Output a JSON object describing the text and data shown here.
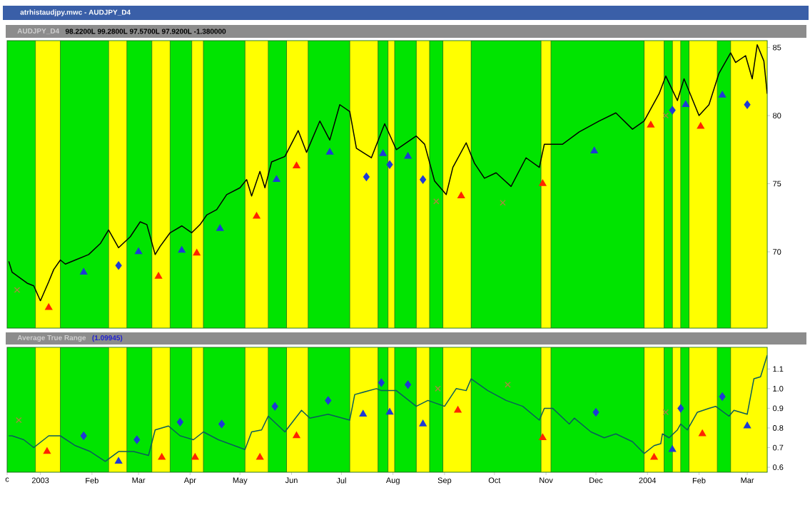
{
  "chart_data": [
    {
      "type": "line",
      "title": "atrhistaudjpy.mwc - AUDJPY_D4",
      "subtitle": "AUDJPY_D4",
      "annotations": [
        "98.2200L 99.2800L 97.5700L 97.9200L -1.380000"
      ],
      "xlim": [
        "2002-12-12",
        "2004-03-13"
      ],
      "ylim": [
        64.4,
        85.5
      ],
      "yticks": [
        70,
        75,
        80,
        85
      ],
      "tick_labels": "y",
      "bands": [
        {
          "axis": "x",
          "from": "2002-12-29",
          "to": "2003-01-13",
          "color": "#ffff00"
        },
        {
          "axis": "x",
          "from": "2003-02-11",
          "to": "2003-02-22",
          "color": "#ffff00"
        },
        {
          "axis": "x",
          "from": "2003-03-09",
          "to": "2003-03-20",
          "color": "#ffff00"
        },
        {
          "axis": "x",
          "from": "2003-04-02",
          "to": "2003-04-09",
          "color": "#ffff00"
        },
        {
          "axis": "x",
          "from": "2003-05-04",
          "to": "2003-05-18",
          "color": "#ffff00"
        },
        {
          "axis": "x",
          "from": "2003-05-29",
          "to": "2003-06-11",
          "color": "#ffff00"
        },
        {
          "axis": "x",
          "from": "2003-07-06",
          "to": "2003-07-23",
          "color": "#ffff00"
        },
        {
          "axis": "x",
          "from": "2003-07-29",
          "to": "2003-08-02",
          "color": "#ffff00"
        },
        {
          "axis": "x",
          "from": "2003-08-15",
          "to": "2003-08-23",
          "color": "#ffff00"
        },
        {
          "axis": "x",
          "from": "2003-08-31",
          "to": "2003-09-17",
          "color": "#ffff00"
        },
        {
          "axis": "x",
          "from": "2003-10-29",
          "to": "2003-11-04",
          "color": "#ffff00"
        },
        {
          "axis": "x",
          "from": "2003-12-30",
          "to": "2004-01-11",
          "color": "#ffff00"
        },
        {
          "axis": "x",
          "from": "2004-01-16",
          "to": "2004-01-21",
          "color": "#ffff00"
        },
        {
          "axis": "x",
          "from": "2004-01-26",
          "to": "2004-02-12",
          "color": "#ffff00"
        },
        {
          "axis": "x",
          "from": "2004-02-20",
          "to": "2004-03-13",
          "color": "#ffff00"
        }
      ],
      "series": [
        {
          "color": "#000000",
          "x": [
            "2002-12-13",
            "2002-12-15",
            "2002-12-24",
            "2002-12-28",
            "2003-01-01",
            "2003-01-06",
            "2003-01-09",
            "2003-01-13",
            "2003-01-16",
            "2003-01-22",
            "2003-01-30",
            "2003-02-06",
            "2003-02-11",
            "2003-02-17",
            "2003-02-24",
            "2003-03-02",
            "2003-03-06",
            "2003-03-11",
            "2003-03-14",
            "2003-03-20",
            "2003-03-27",
            "2003-04-02",
            "2003-04-07",
            "2003-04-11",
            "2003-04-17",
            "2003-04-23",
            "2003-05-01",
            "2003-05-05",
            "2003-05-08",
            "2003-05-13",
            "2003-05-16",
            "2003-05-20",
            "2003-05-28",
            "2003-06-05",
            "2003-06-10",
            "2003-06-18",
            "2003-06-24",
            "2003-06-30",
            "2003-07-06",
            "2003-07-10",
            "2003-07-19",
            "2003-07-27",
            "2003-08-03",
            "2003-08-15",
            "2003-08-20",
            "2003-08-26",
            "2003-09-02",
            "2003-09-06",
            "2003-09-14",
            "2003-09-19",
            "2003-09-25",
            "2003-10-02",
            "2003-10-11",
            "2003-10-20",
            "2003-10-28",
            "2003-10-31",
            "2003-11-11",
            "2003-11-21",
            "2003-12-03",
            "2003-12-13",
            "2003-12-23",
            "2003-12-30",
            "2004-01-08",
            "2004-01-12",
            "2004-01-19",
            "2004-01-23",
            "2004-02-01",
            "2004-02-07",
            "2004-02-13",
            "2004-02-20",
            "2004-02-23",
            "2004-02-29",
            "2004-03-04",
            "2004-03-07",
            "2004-03-11",
            "2004-03-13"
          ],
          "values": [
            69.3,
            68.5,
            67.7,
            67.5,
            66.4,
            67.8,
            68.7,
            69.4,
            69.1,
            69.4,
            69.8,
            70.6,
            71.6,
            70.3,
            71.1,
            72.2,
            72.0,
            69.8,
            70.4,
            71.4,
            71.9,
            71.4,
            72.0,
            72.7,
            73.1,
            74.2,
            74.7,
            75.3,
            74.1,
            75.9,
            74.7,
            76.6,
            77.0,
            78.9,
            77.3,
            79.6,
            78.2,
            80.8,
            80.3,
            77.6,
            76.9,
            79.4,
            77.5,
            78.5,
            77.9,
            75.2,
            74.2,
            76.2,
            78.0,
            76.5,
            75.4,
            75.8,
            74.8,
            76.9,
            76.2,
            77.9,
            77.9,
            78.8,
            79.6,
            80.2,
            79.0,
            79.6,
            81.6,
            82.9,
            81.1,
            82.7,
            80.0,
            80.8,
            83.1,
            84.6,
            83.9,
            84.4,
            82.7,
            85.2,
            84.0,
            81.6
          ]
        },
        {
          "type": "scatter",
          "marker": "triangle",
          "color": "#ff2400",
          "x": [
            "2003-01-06",
            "2003-03-13",
            "2003-04-05",
            "2003-05-11",
            "2003-06-04",
            "2003-09-11",
            "2003-10-30",
            "2004-01-03",
            "2004-02-02"
          ],
          "values": [
            65.9,
            68.2,
            69.9,
            72.6,
            76.3,
            74.1,
            75.0,
            79.3,
            79.2
          ]
        },
        {
          "type": "scatter",
          "marker": "triangle",
          "color": "#1e3ad6",
          "x": [
            "2003-01-27",
            "2003-03-01",
            "2003-03-27",
            "2003-04-19",
            "2003-05-23",
            "2003-06-24",
            "2003-07-26",
            "2003-08-10",
            "2003-11-30",
            "2004-01-24",
            "2004-02-15"
          ],
          "values": [
            68.5,
            70.0,
            70.1,
            71.7,
            75.3,
            77.3,
            77.2,
            77.0,
            77.4,
            80.8,
            81.5
          ]
        },
        {
          "type": "scatter",
          "marker": "diamond",
          "color": "#1e3ad6",
          "x": [
            "2003-02-17",
            "2003-07-16",
            "2003-07-30",
            "2003-08-19",
            "2004-01-16",
            "2004-03-01"
          ],
          "values": [
            69.0,
            75.5,
            76.4,
            75.3,
            80.4,
            80.8
          ]
        },
        {
          "type": "scatter",
          "marker": "cross",
          "color": "#a08c3c",
          "x": [
            "2002-12-18",
            "2003-08-27",
            "2003-10-06",
            "2004-01-12"
          ],
          "values": [
            67.2,
            73.7,
            73.6,
            80.0
          ]
        }
      ]
    },
    {
      "type": "line",
      "title": "Average True Range",
      "annotations": [
        "(1.09945)"
      ],
      "xlim": [
        "2002-12-12",
        "2004-03-13"
      ],
      "ylim": [
        0.575,
        1.21
      ],
      "yticks": [
        0.6,
        0.7,
        0.8,
        0.9,
        {
          "value": 1.0,
          "label": "1.0"
        },
        1.1
      ],
      "xticks": [
        {
          "value": "2002-12-12",
          "label": "c"
        },
        {
          "value": "2003-01-01",
          "label": "2003"
        },
        {
          "value": "2003-02-01",
          "label": "Feb"
        },
        {
          "value": "2003-03-01",
          "label": "Mar"
        },
        {
          "value": "2003-04-01",
          "label": "Apr"
        },
        {
          "value": "2003-05-01",
          "label": "May"
        },
        {
          "value": "2003-06-01",
          "label": "Jun"
        },
        {
          "value": "2003-07-01",
          "label": "Jul"
        },
        {
          "value": "2003-08-01",
          "label": "Aug"
        },
        {
          "value": "2003-09-01",
          "label": "Sep"
        },
        {
          "value": "2003-10-01",
          "label": "Oct"
        },
        {
          "value": "2003-11-01",
          "label": "Nov"
        },
        {
          "value": "2003-12-01",
          "label": "Dec"
        },
        {
          "value": "2004-01-01",
          "label": "2004"
        },
        {
          "value": "2004-02-01",
          "label": "Feb"
        },
        {
          "value": "2004-03-01",
          "label": "Mar"
        }
      ],
      "bands": [
        {
          "axis": "x",
          "from": "2002-12-29",
          "to": "2003-01-13",
          "color": "#ffff00"
        },
        {
          "axis": "x",
          "from": "2003-02-11",
          "to": "2003-02-22",
          "color": "#ffff00"
        },
        {
          "axis": "x",
          "from": "2003-03-09",
          "to": "2003-03-20",
          "color": "#ffff00"
        },
        {
          "axis": "x",
          "from": "2003-04-02",
          "to": "2003-04-09",
          "color": "#ffff00"
        },
        {
          "axis": "x",
          "from": "2003-05-04",
          "to": "2003-05-18",
          "color": "#ffff00"
        },
        {
          "axis": "x",
          "from": "2003-05-29",
          "to": "2003-06-11",
          "color": "#ffff00"
        },
        {
          "axis": "x",
          "from": "2003-07-06",
          "to": "2003-07-23",
          "color": "#ffff00"
        },
        {
          "axis": "x",
          "from": "2003-07-29",
          "to": "2003-08-02",
          "color": "#ffff00"
        },
        {
          "axis": "x",
          "from": "2003-08-15",
          "to": "2003-08-23",
          "color": "#ffff00"
        },
        {
          "axis": "x",
          "from": "2003-08-31",
          "to": "2003-09-17",
          "color": "#ffff00"
        },
        {
          "axis": "x",
          "from": "2003-10-29",
          "to": "2003-11-04",
          "color": "#ffff00"
        },
        {
          "axis": "x",
          "from": "2003-12-30",
          "to": "2004-01-11",
          "color": "#ffff00"
        },
        {
          "axis": "x",
          "from": "2004-01-16",
          "to": "2004-01-21",
          "color": "#ffff00"
        },
        {
          "axis": "x",
          "from": "2004-01-26",
          "to": "2004-02-12",
          "color": "#ffff00"
        },
        {
          "axis": "x",
          "from": "2004-02-20",
          "to": "2004-03-13",
          "color": "#ffff00"
        }
      ],
      "series": [
        {
          "color": "#0a5c5c",
          "x": [
            "2002-12-13",
            "2002-12-15",
            "2002-12-22",
            "2002-12-28",
            "2003-01-06",
            "2003-01-13",
            "2003-01-22",
            "2003-01-31",
            "2003-02-09",
            "2003-02-17",
            "2003-02-26",
            "2003-03-07",
            "2003-03-11",
            "2003-03-19",
            "2003-03-26",
            "2003-04-03",
            "2003-04-09",
            "2003-04-18",
            "2003-05-04",
            "2003-05-08",
            "2003-05-14",
            "2003-05-18",
            "2003-05-28",
            "2003-06-07",
            "2003-06-12",
            "2003-06-23",
            "2003-07-06",
            "2003-07-09",
            "2003-07-22",
            "2003-07-25",
            "2003-08-03",
            "2003-08-15",
            "2003-08-22",
            "2003-09-01",
            "2003-09-08",
            "2003-09-14",
            "2003-09-17",
            "2003-09-27",
            "2003-10-08",
            "2003-10-18",
            "2003-10-28",
            "2003-10-31",
            "2003-11-05",
            "2003-11-15",
            "2003-11-18",
            "2003-11-28",
            "2003-12-06",
            "2003-12-13",
            "2003-12-23",
            "2003-12-30",
            "2004-01-05",
            "2004-01-09",
            "2004-01-10",
            "2004-01-14",
            "2004-01-19",
            "2004-01-21",
            "2004-01-25",
            "2004-01-31",
            "2004-02-07",
            "2004-02-11",
            "2004-02-19",
            "2004-02-22",
            "2004-03-01",
            "2004-03-05",
            "2004-03-09",
            "2004-03-13"
          ],
          "values": [
            0.76,
            0.76,
            0.74,
            0.7,
            0.76,
            0.76,
            0.71,
            0.68,
            0.63,
            0.68,
            0.68,
            0.66,
            0.79,
            0.81,
            0.76,
            0.74,
            0.78,
            0.74,
            0.69,
            0.78,
            0.79,
            0.86,
            0.78,
            0.89,
            0.85,
            0.87,
            0.84,
            0.97,
            1.0,
            0.99,
            0.99,
            0.91,
            0.94,
            0.91,
            1.0,
            0.99,
            1.05,
            0.99,
            0.94,
            0.91,
            0.84,
            0.9,
            0.9,
            0.82,
            0.85,
            0.78,
            0.75,
            0.77,
            0.73,
            0.67,
            0.71,
            0.72,
            0.77,
            0.75,
            0.79,
            0.82,
            0.79,
            0.88,
            0.9,
            0.91,
            0.86,
            0.89,
            0.87,
            1.05,
            1.06,
            1.17
          ]
        },
        {
          "type": "scatter",
          "marker": "triangle",
          "color": "#ff2400",
          "x": [
            "2003-01-05",
            "2003-03-15",
            "2003-04-04",
            "2003-05-13",
            "2003-06-04",
            "2003-09-09",
            "2003-10-30",
            "2004-01-05",
            "2004-02-03"
          ],
          "values": [
            0.68,
            0.65,
            0.65,
            0.65,
            0.76,
            0.89,
            0.75,
            0.65,
            0.77
          ]
        },
        {
          "type": "scatter",
          "marker": "triangle",
          "color": "#1e3ad6",
          "x": [
            "2003-02-17",
            "2003-07-14",
            "2003-07-30",
            "2003-08-19",
            "2004-01-16",
            "2004-03-01"
          ],
          "values": [
            0.63,
            0.87,
            0.88,
            0.82,
            0.69,
            0.81
          ]
        },
        {
          "type": "scatter",
          "marker": "diamond",
          "color": "#1e3ad6",
          "x": [
            "2003-01-27",
            "2003-02-28",
            "2003-03-26",
            "2003-04-20",
            "2003-05-22",
            "2003-06-23",
            "2003-07-25",
            "2003-08-10",
            "2003-12-01",
            "2004-01-21",
            "2004-02-15"
          ],
          "values": [
            0.76,
            0.74,
            0.83,
            0.82,
            0.91,
            0.94,
            1.03,
            1.02,
            0.88,
            0.9,
            0.96
          ]
        },
        {
          "type": "scatter",
          "marker": "cross",
          "color": "#a08c3c",
          "x": [
            "2002-12-19",
            "2003-08-28",
            "2003-10-09",
            "2004-01-12"
          ],
          "values": [
            0.84,
            1.0,
            1.02,
            0.88
          ]
        }
      ]
    }
  ]
}
